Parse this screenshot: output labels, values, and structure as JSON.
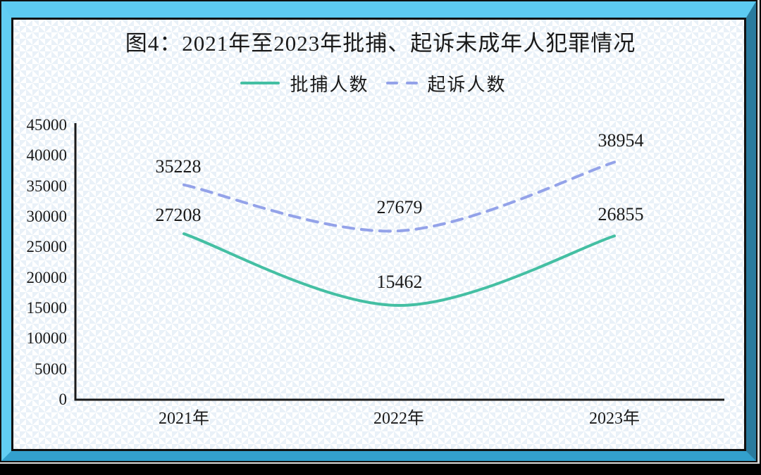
{
  "title": "图4：2021年至2023年批捕、起诉未成年人犯罪情况",
  "legend": {
    "items": [
      {
        "label": "批捕人数",
        "style": "solid",
        "color": "#44bfa3"
      },
      {
        "label": "起诉人数",
        "style": "dashed",
        "color": "#93a2e9"
      }
    ]
  },
  "chart_data": {
    "type": "line",
    "title": "图4：2021年至2023年批捕、起诉未成年人犯罪情况",
    "categories": [
      "2021年",
      "2022年",
      "2023年"
    ],
    "series": [
      {
        "id": "arrested",
        "name": "批捕人数",
        "values": [
          27208,
          15462,
          26855
        ],
        "color": "#44bfa3",
        "dash": false
      },
      {
        "id": "prosecuted",
        "name": "起诉人数",
        "values": [
          35228,
          27679,
          38954
        ],
        "color": "#93a2e9",
        "dash": true
      }
    ],
    "xlabel": "",
    "ylabel": "",
    "ylim": [
      0,
      45000
    ],
    "yticks": [
      0,
      5000,
      10000,
      15000,
      20000,
      25000,
      30000,
      35000,
      40000,
      45000
    ],
    "grid": false,
    "legend_position": "top",
    "data_labels": true,
    "line_style": "smooth"
  },
  "colors": {
    "axis": "#1a1a1a",
    "text": "#1a1a1a",
    "frame_top": "#5dcbf2",
    "frame_left": "#62cdf2",
    "frame_right": "#2a7b9e",
    "frame_bottom": "#33a0cd",
    "pattern_dot": "#e9f1f8",
    "background": "#ffffff"
  }
}
